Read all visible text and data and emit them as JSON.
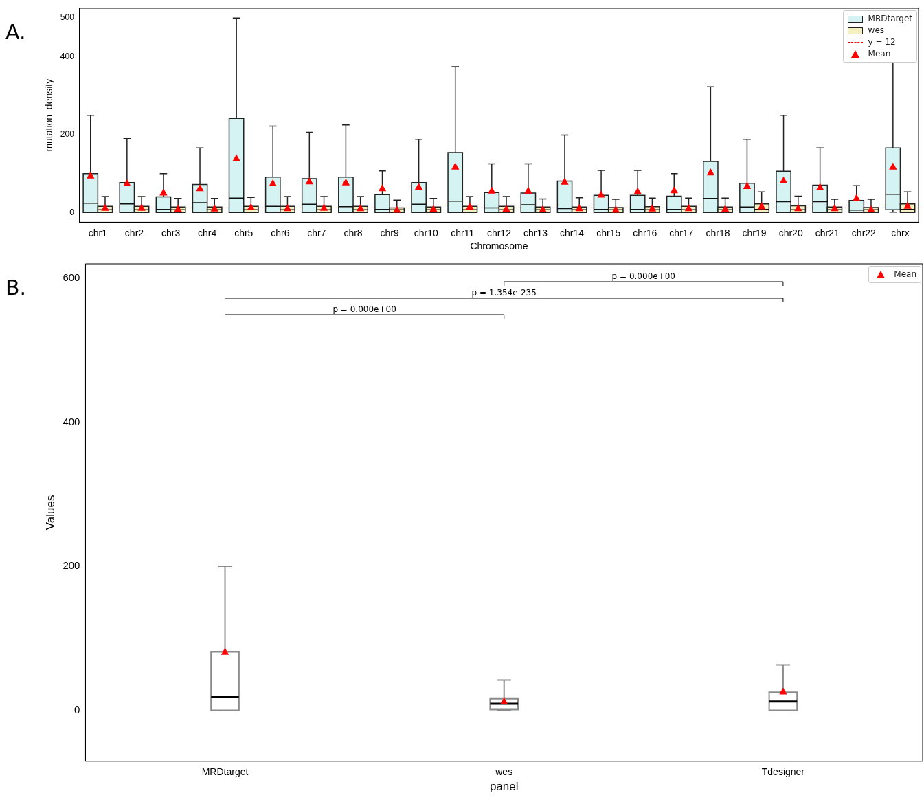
{
  "chart_data": [
    {
      "type": "box",
      "xlabel": "Chromosome",
      "ylabel": "mutation_density",
      "annotations": [
        "A."
      ],
      "legend": "top right",
      "ylim": [
        -25,
        525
      ],
      "yticks": [
        0,
        200,
        400,
        500
      ],
      "categories": [
        "chr1",
        "chr2",
        "chr3",
        "chr4",
        "chr5",
        "chr6",
        "chr7",
        "chr8",
        "chr9",
        "chr10",
        "chr11",
        "chr12",
        "chr13",
        "chr14",
        "chr15",
        "chr16",
        "chr17",
        "chr18",
        "chr19",
        "chr20",
        "chr21",
        "chr22",
        "chrx"
      ],
      "series": [
        {
          "name": "MRDtarget",
          "color": "#d6f3f3",
          "boxes": [
            {
              "low": 0,
              "q1": 0,
              "median": 24,
              "q3": 100,
              "high": 250
            },
            {
              "low": 0,
              "q1": 0,
              "median": 22,
              "q3": 77,
              "high": 190
            },
            {
              "low": 0,
              "q1": 0,
              "median": 8,
              "q3": 40,
              "high": 100
            },
            {
              "low": 0,
              "q1": 0,
              "median": 25,
              "q3": 72,
              "high": 166
            },
            {
              "low": 0,
              "q1": 0,
              "median": 37,
              "q3": 242,
              "high": 500
            },
            {
              "low": 0,
              "q1": 0,
              "median": 16,
              "q3": 91,
              "high": 222
            },
            {
              "low": 0,
              "q1": 0,
              "median": 21,
              "q3": 87,
              "high": 206
            },
            {
              "low": 0,
              "q1": 0,
              "median": 15,
              "q3": 91,
              "high": 225
            },
            {
              "low": 0,
              "q1": 0,
              "median": 8,
              "q3": 46,
              "high": 107
            },
            {
              "low": 0,
              "q1": 0,
              "median": 21,
              "q3": 77,
              "high": 188
            },
            {
              "low": 0,
              "q1": 0,
              "median": 29,
              "q3": 154,
              "high": 375
            },
            {
              "low": 0,
              "q1": 0,
              "median": 12,
              "q3": 51,
              "high": 125
            },
            {
              "low": 0,
              "q1": 0,
              "median": 20,
              "q3": 50,
              "high": 125
            },
            {
              "low": 0,
              "q1": 0,
              "median": 10,
              "q3": 81,
              "high": 199
            },
            {
              "low": 0,
              "q1": 0,
              "median": 8,
              "q3": 44,
              "high": 108
            },
            {
              "low": 0,
              "q1": 0,
              "median": 8,
              "q3": 44,
              "high": 108
            },
            {
              "low": 0,
              "q1": 0,
              "median": 8,
              "q3": 42,
              "high": 100
            },
            {
              "low": 0,
              "q1": 0,
              "median": 36,
              "q3": 131,
              "high": 323
            },
            {
              "low": 0,
              "q1": 0,
              "median": 14,
              "q3": 75,
              "high": 188
            },
            {
              "low": 0,
              "q1": 0,
              "median": 28,
              "q3": 106,
              "high": 250
            },
            {
              "low": 0,
              "q1": 0,
              "median": 28,
              "q3": 70,
              "high": 166
            },
            {
              "low": 0,
              "q1": 0,
              "median": 6,
              "q3": 31,
              "high": 69
            },
            {
              "low": 1,
              "q1": 7,
              "median": 47,
              "q3": 166,
              "high": 392
            }
          ]
        },
        {
          "name": "wes",
          "color": "#f5f0c2",
          "boxes": [
            {
              "low": 0,
              "q1": 0,
              "median": 7,
              "q3": 16,
              "high": 41
            },
            {
              "low": 0,
              "q1": 0,
              "median": 7,
              "q3": 16,
              "high": 41
            },
            {
              "low": 0,
              "q1": 0,
              "median": 7,
              "q3": 14,
              "high": 36
            },
            {
              "low": 0,
              "q1": 0,
              "median": 7,
              "q3": 14,
              "high": 36
            },
            {
              "low": 0,
              "q1": 0,
              "median": 7,
              "q3": 16,
              "high": 39
            },
            {
              "low": 0,
              "q1": 0,
              "median": 7,
              "q3": 16,
              "high": 41
            },
            {
              "low": 0,
              "q1": 0,
              "median": 7,
              "q3": 16,
              "high": 41
            },
            {
              "low": 0,
              "q1": 0,
              "median": 7,
              "q3": 16,
              "high": 41
            },
            {
              "low": 0,
              "q1": 0,
              "median": 7,
              "q3": 12,
              "high": 32
            },
            {
              "low": 0,
              "q1": 0,
              "median": 7,
              "q3": 14,
              "high": 36
            },
            {
              "low": 0,
              "q1": 0,
              "median": 7,
              "q3": 16,
              "high": 41
            },
            {
              "low": 0,
              "q1": 0,
              "median": 7,
              "q3": 16,
              "high": 41
            },
            {
              "low": 0,
              "q1": 0,
              "median": 7,
              "q3": 14,
              "high": 35
            },
            {
              "low": 0,
              "q1": 0,
              "median": 7,
              "q3": 14,
              "high": 38
            },
            {
              "low": 0,
              "q1": 0,
              "median": 7,
              "q3": 13,
              "high": 34
            },
            {
              "low": 0,
              "q1": 0,
              "median": 7,
              "q3": 15,
              "high": 37
            },
            {
              "low": 0,
              "q1": 0,
              "median": 7,
              "q3": 16,
              "high": 37
            },
            {
              "low": 0,
              "q1": 0,
              "median": 7,
              "q3": 14,
              "high": 37
            },
            {
              "low": 0,
              "q1": 0,
              "median": 8,
              "q3": 22,
              "high": 53
            },
            {
              "low": 0,
              "q1": 0,
              "median": 7,
              "q3": 17,
              "high": 42
            },
            {
              "low": 0,
              "q1": 0,
              "median": 7,
              "q3": 14,
              "high": 34
            },
            {
              "low": 0,
              "q1": 0,
              "median": 7,
              "q3": 13,
              "high": 34
            },
            {
              "low": 0,
              "q1": 0,
              "median": 8,
              "q3": 22,
              "high": 53
            }
          ]
        },
        {
          "name": "Mean",
          "type": "scatter",
          "marker": "triangle",
          "color": "#ff0000",
          "values": [
            95,
            75,
            51,
            62,
            139,
            75,
            80,
            77,
            62,
            66,
            118,
            56,
            56,
            79,
            46,
            54,
            57,
            103,
            68,
            82,
            65,
            37,
            118
          ]
        },
        {
          "type": "scatter",
          "marker": "triangle",
          "color": "#ff0000",
          "values": [
            12,
            12,
            9,
            10,
            13,
            11,
            12,
            11,
            7,
            9,
            15,
            9,
            8,
            11,
            7,
            10,
            11,
            9,
            16,
            11,
            11,
            8,
            17
          ]
        }
      ],
      "ref_lines": [
        {
          "axis": "y",
          "value": 12,
          "label": "y = 12",
          "color": "#ff0000",
          "line_style": "dashed"
        }
      ]
    },
    {
      "type": "box",
      "xlabel": "panel",
      "ylabel": "Values",
      "annotations": [
        "B.",
        "p = 0.000e+00",
        "p = 1.354e-235",
        "p = 0.000e+00"
      ],
      "legend": "top right",
      "ylim": [
        -71,
        620
      ],
      "yticks": [
        0,
        200,
        400,
        600
      ],
      "categories": [
        "MRDtarget",
        "wes",
        "Tdesigner"
      ],
      "series": [
        {
          "color": "#ffffff",
          "boxes": [
            {
              "low": 0,
              "q1": 0,
              "median": 18,
              "q3": 81,
              "high": 200
            },
            {
              "low": 0,
              "q1": 1,
              "median": 9,
              "q3": 16,
              "high": 42
            },
            {
              "low": 0,
              "q1": 0,
              "median": 12,
              "q3": 25,
              "high": 63
            }
          ]
        },
        {
          "name": "Mean",
          "type": "scatter",
          "marker": "triangle",
          "color": "#ff0000",
          "values": [
            81,
            12,
            26
          ]
        }
      ]
    }
  ]
}
